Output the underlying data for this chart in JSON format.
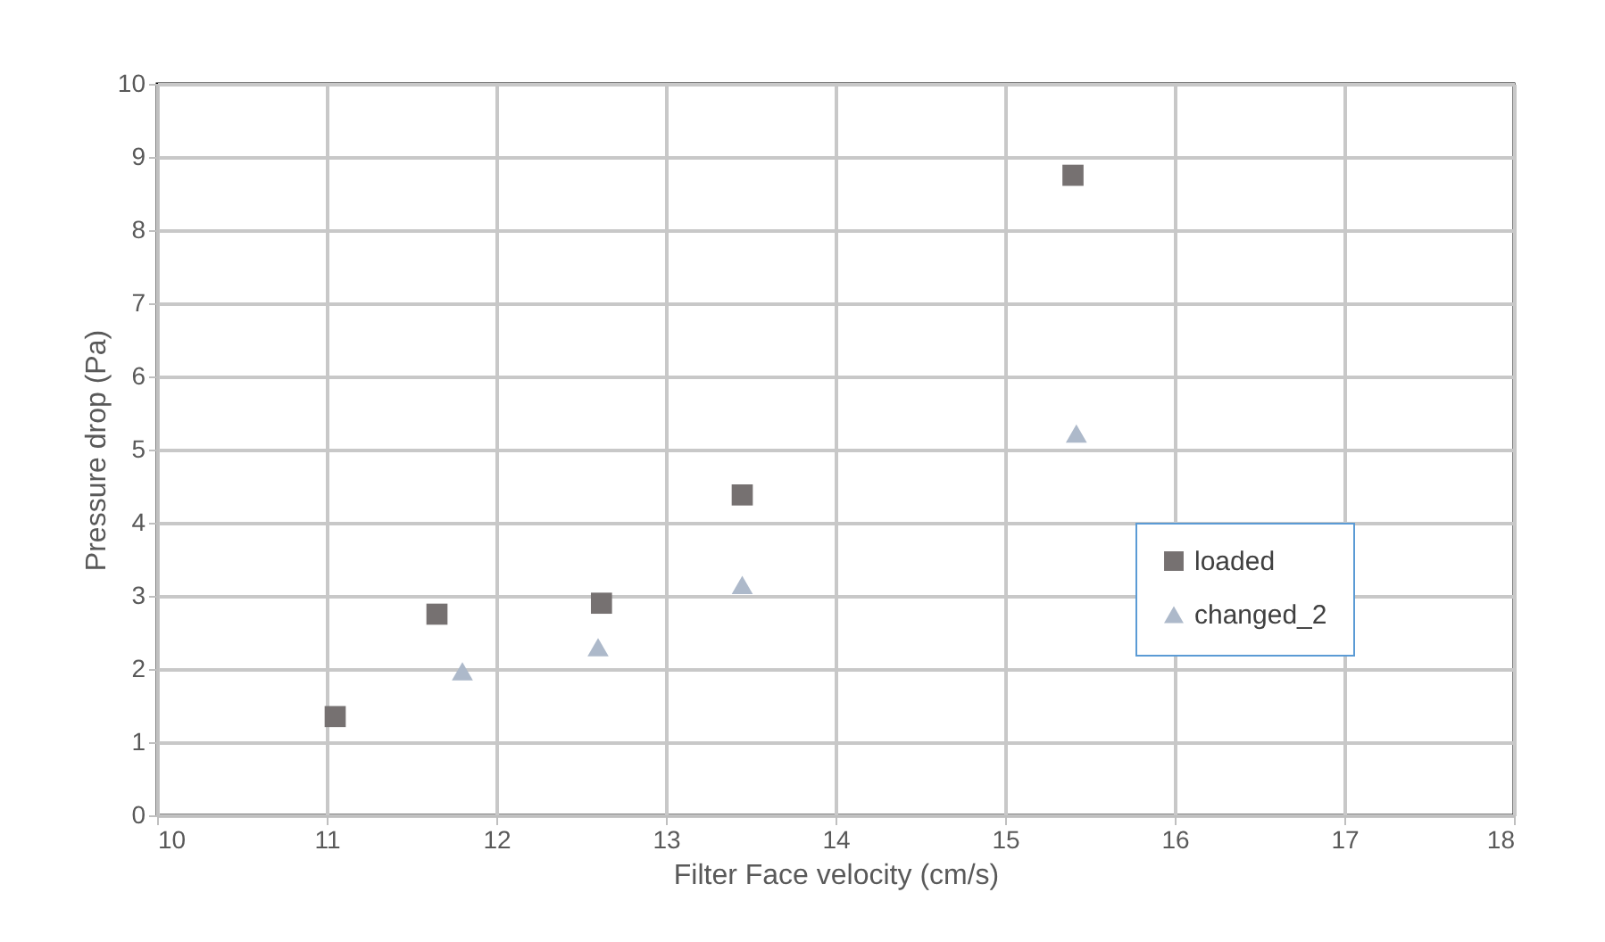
{
  "chart_data": {
    "type": "scatter",
    "xlabel": "Filter Face velocity (cm/s)",
    "ylabel": "Pressure drop (Pa)",
    "xlim": [
      10,
      18
    ],
    "xticks": [
      10,
      11,
      12,
      13,
      14,
      15,
      16,
      17,
      18
    ],
    "ylim": [
      0,
      10
    ],
    "yticks": [
      0,
      1,
      2,
      3,
      4,
      5,
      6,
      7,
      8,
      9,
      10
    ],
    "grid": true,
    "legend": "bottom right",
    "series": [
      {
        "name": "loaded",
        "color": "#767171",
        "marker": "square",
        "x": [
          11.05,
          11.65,
          12.62,
          13.45,
          15.4
        ],
        "values": [
          1.35,
          2.75,
          2.9,
          4.38,
          8.75
        ]
      },
      {
        "name": "changed_2",
        "color": "#adb9ca",
        "marker": "triangle",
        "x": [
          11.8,
          12.6,
          13.45,
          15.42
        ],
        "values": [
          1.97,
          2.3,
          3.15,
          5.22
        ]
      }
    ]
  }
}
